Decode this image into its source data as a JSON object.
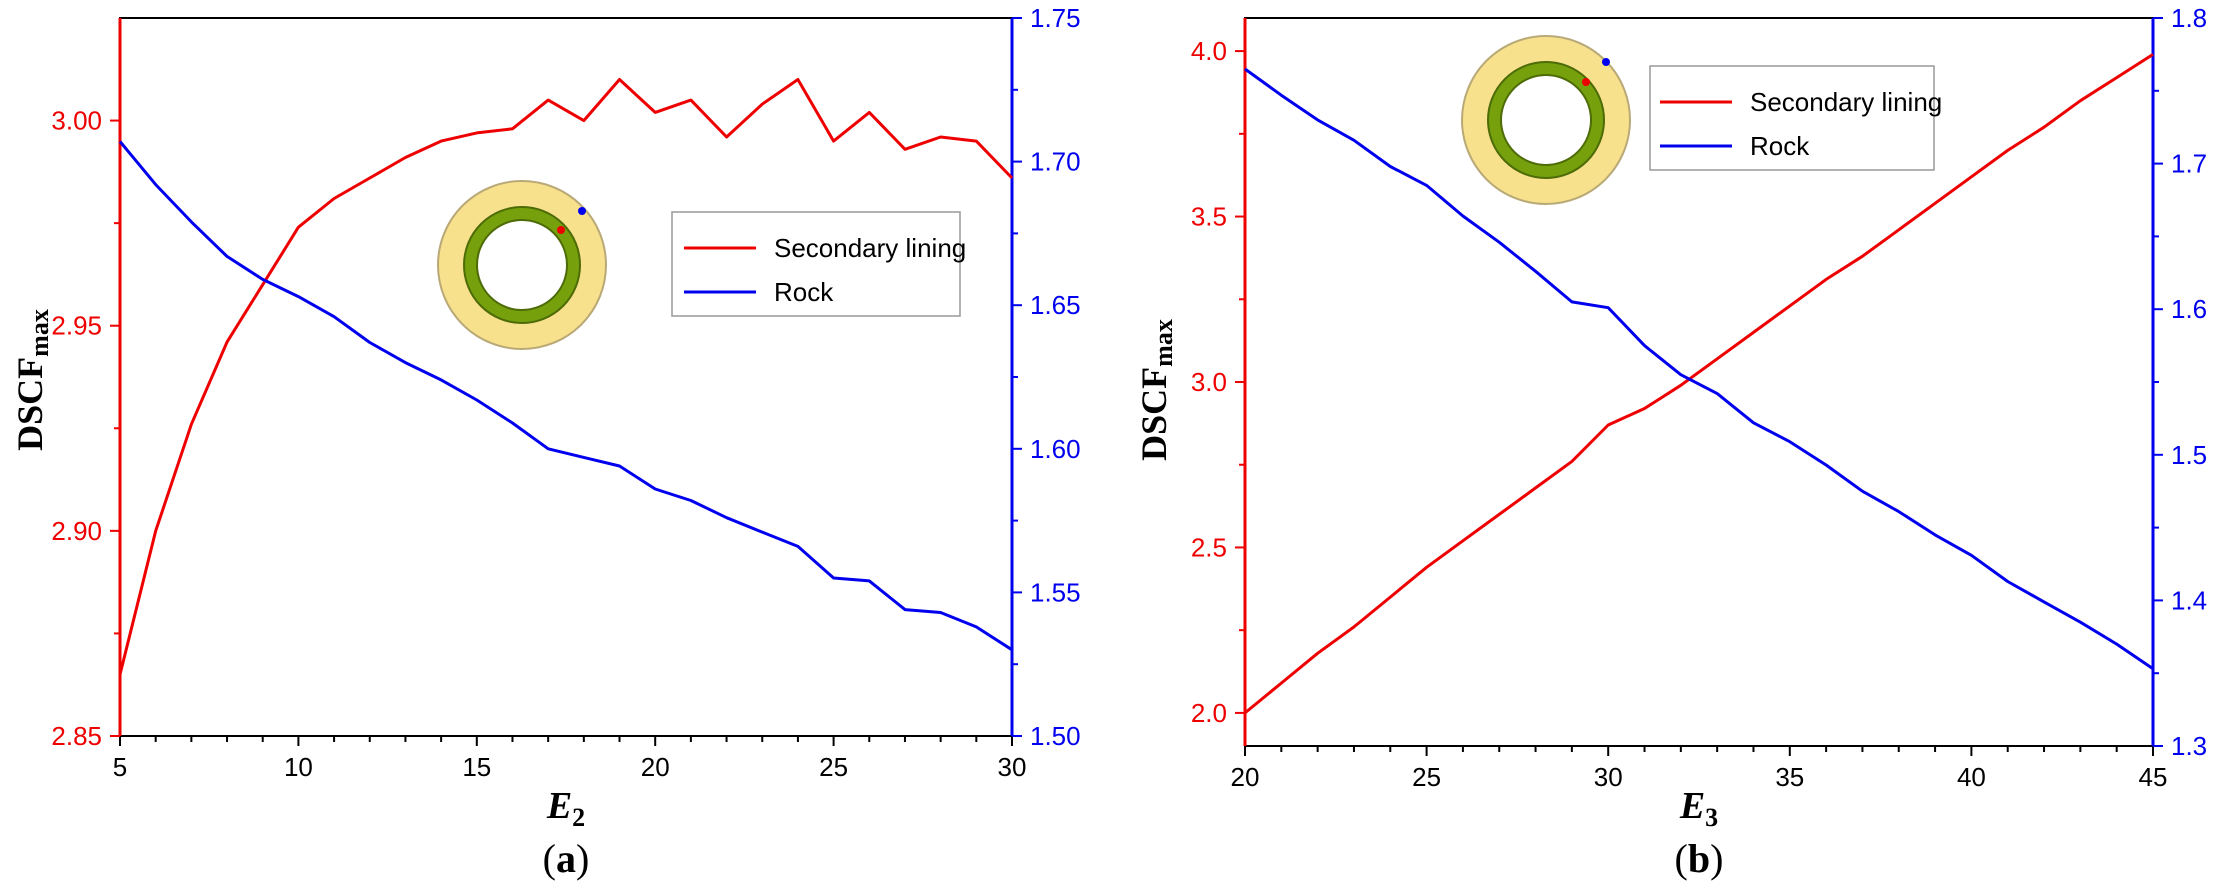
{
  "chart_data": [
    {
      "type": "line",
      "panel_label": "a",
      "xlabel": "E",
      "xlabel_sub": "2",
      "ylabel": "DSCF",
      "ylabel_sub": "max",
      "xlim": [
        5,
        30
      ],
      "xticks": [
        "5",
        "10",
        "15",
        "20",
        "25",
        "30"
      ],
      "ylim_left": [
        2.85,
        3.025
      ],
      "yticks_left": [
        "2.85",
        "2.90",
        "2.95",
        "3.00"
      ],
      "ylim_right": [
        1.5,
        1.75
      ],
      "yticks_right": [
        "1.50",
        "1.55",
        "1.60",
        "1.65",
        "1.70",
        "1.75"
      ],
      "x": [
        5,
        6,
        7,
        8,
        9,
        10,
        11,
        12,
        13,
        14,
        15,
        16,
        17,
        18,
        19,
        20,
        21,
        22,
        23,
        24,
        25,
        26,
        27,
        28,
        29,
        30
      ],
      "series": [
        {
          "name": "Secondary lining",
          "axis": "left",
          "color": "#ee0000",
          "values": [
            2.865,
            2.9,
            2.926,
            2.946,
            2.96,
            2.974,
            2.981,
            2.986,
            2.991,
            2.995,
            2.997,
            2.998,
            3.005,
            3.0,
            3.01,
            3.002,
            3.005,
            2.996,
            3.004,
            3.01,
            2.995,
            3.002,
            2.993,
            2.996,
            2.995,
            2.986
          ]
        },
        {
          "name": "Rock",
          "axis": "right",
          "color": "#0000ee",
          "values": [
            1.707,
            1.692,
            1.679,
            1.667,
            1.659,
            1.653,
            1.646,
            1.637,
            1.63,
            1.624,
            1.617,
            1.609,
            1.6,
            1.597,
            1.594,
            1.586,
            1.582,
            1.576,
            1.571,
            1.566,
            1.555,
            1.554,
            1.544,
            1.543,
            1.538,
            1.53
          ]
        }
      ],
      "legend_position": "right-center"
    },
    {
      "type": "line",
      "panel_label": "b",
      "xlabel": "E",
      "xlabel_sub": "3",
      "ylabel": "DSCF",
      "ylabel_sub": "max",
      "xlim": [
        20,
        45
      ],
      "xticks": [
        "20",
        "25",
        "30",
        "35",
        "40",
        "45"
      ],
      "ylim_left": [
        1.9,
        4.1
      ],
      "yticks_left": [
        "2.0",
        "2.5",
        "3.0",
        "3.5",
        "4.0"
      ],
      "ylim_right": [
        1.3,
        1.8
      ],
      "yticks_right": [
        "1.3",
        "1.4",
        "1.5",
        "1.6",
        "1.7",
        "1.8"
      ],
      "x": [
        20,
        21,
        22,
        23,
        24,
        25,
        26,
        27,
        28,
        29,
        30,
        31,
        32,
        33,
        34,
        35,
        36,
        37,
        38,
        39,
        40,
        41,
        42,
        43,
        44,
        45
      ],
      "series": [
        {
          "name": "Secondary lining",
          "axis": "left",
          "color": "#ee0000",
          "values": [
            2.0,
            2.09,
            2.18,
            2.26,
            2.35,
            2.44,
            2.52,
            2.6,
            2.68,
            2.76,
            2.87,
            2.92,
            2.99,
            3.07,
            3.15,
            3.23,
            3.31,
            3.38,
            3.46,
            3.54,
            3.62,
            3.7,
            3.77,
            3.85,
            3.92,
            3.99
          ]
        },
        {
          "name": "Rock",
          "axis": "right",
          "color": "#0000ee",
          "values": [
            1.765,
            1.747,
            1.73,
            1.716,
            1.698,
            1.685,
            1.664,
            1.646,
            1.626,
            1.605,
            1.601,
            1.575,
            1.555,
            1.542,
            1.522,
            1.509,
            1.493,
            1.475,
            1.461,
            1.445,
            1.431,
            1.413,
            1.399,
            1.385,
            1.37,
            1.353
          ]
        }
      ],
      "legend_position": "top-right"
    }
  ],
  "colors": {
    "left_axis": "#ee0000",
    "right_axis": "#0000ee",
    "ring_outer": "#f8e18c",
    "ring_inner": "#76a00c"
  }
}
